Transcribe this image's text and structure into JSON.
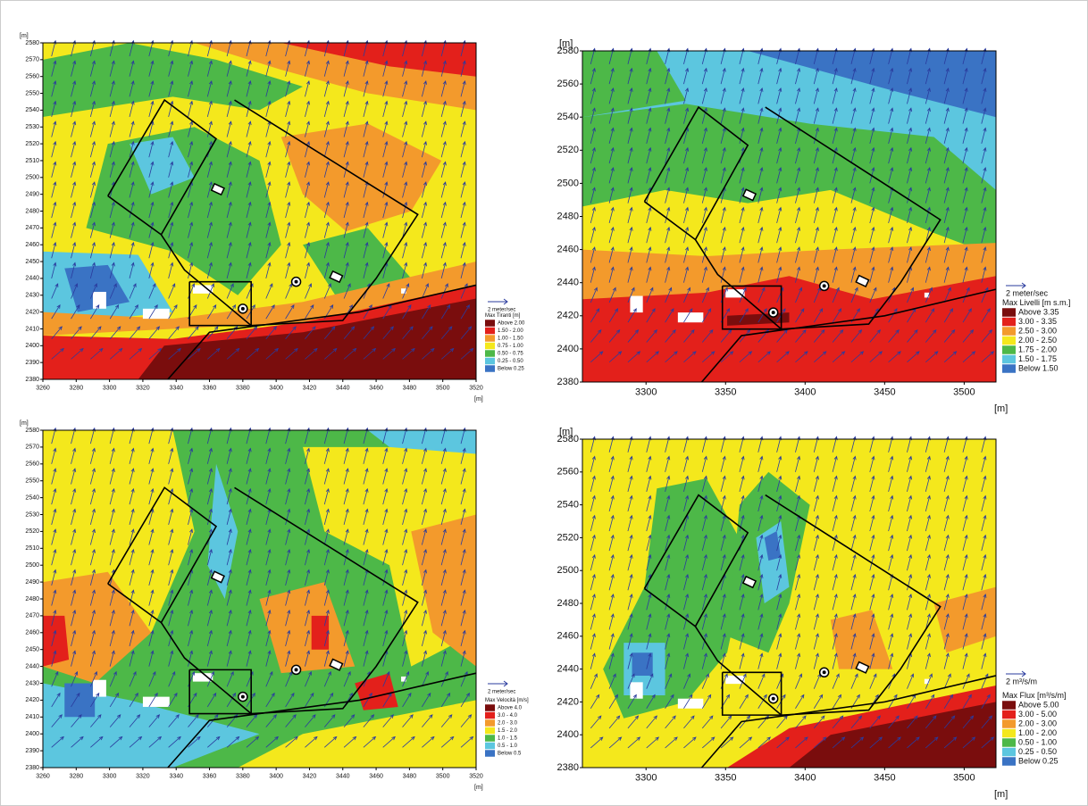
{
  "chart_data": [
    {
      "type": "map",
      "x_label": "[m]",
      "y_label": "[m]",
      "vector_label": "2 meter/sec",
      "xlim": [
        3260,
        3520
      ],
      "ylim": [
        2380,
        2580
      ],
      "xticks": [
        3260,
        3280,
        3300,
        3320,
        3340,
        3360,
        3380,
        3400,
        3420,
        3440,
        3460,
        3480,
        3500,
        3520
      ],
      "yticks": [
        2380,
        2390,
        2400,
        2410,
        2420,
        2430,
        2440,
        2450,
        2460,
        2470,
        2480,
        2490,
        2500,
        2510,
        2520,
        2530,
        2540,
        2550,
        2560,
        2570,
        2580
      ],
      "legend_title": "Max Tiranti [m]",
      "legend": [
        {
          "label": "Above 2.00",
          "color": "#7a0d0d"
        },
        {
          "label": "1.50 - 2.00",
          "color": "#e3201b"
        },
        {
          "label": "1.00 - 1.50",
          "color": "#f39a2c"
        },
        {
          "label": "0.75 - 1.00",
          "color": "#f4e81c"
        },
        {
          "label": "0.50 - 0.75",
          "color": "#4db848"
        },
        {
          "label": "0.25 - 0.50",
          "color": "#5cc6df"
        },
        {
          "label": "Below 0.25",
          "color": "#3a73c4"
        }
      ]
    },
    {
      "type": "map",
      "x_label": "[m]",
      "y_label": "[m]",
      "vector_label": "2 meter/sec",
      "xlim": [
        3260,
        3520
      ],
      "ylim": [
        2380,
        2580
      ],
      "xticks": [
        3300,
        3350,
        3400,
        3450,
        3500
      ],
      "yticks": [
        2380,
        2400,
        2420,
        2440,
        2460,
        2480,
        2500,
        2520,
        2540,
        2560,
        2580
      ],
      "legend_title": "Max Livelli [m s.m.]",
      "legend": [
        {
          "label": "Above 3.35",
          "color": "#7a0d0d"
        },
        {
          "label": "3.00 - 3.35",
          "color": "#e3201b"
        },
        {
          "label": "2.50 - 3.00",
          "color": "#f39a2c"
        },
        {
          "label": "2.00 - 2.50",
          "color": "#f4e81c"
        },
        {
          "label": "1.75 - 2.00",
          "color": "#4db848"
        },
        {
          "label": "1.50 - 1.75",
          "color": "#5cc6df"
        },
        {
          "label": "Below 1.50",
          "color": "#3a73c4"
        }
      ]
    },
    {
      "type": "map",
      "x_label": "[m]",
      "y_label": "[m]",
      "vector_label": "2 meter/sec",
      "xlim": [
        3260,
        3520
      ],
      "ylim": [
        2380,
        2580
      ],
      "xticks": [
        3260,
        3280,
        3300,
        3320,
        3340,
        3360,
        3380,
        3400,
        3420,
        3440,
        3460,
        3480,
        3500,
        3520
      ],
      "yticks": [
        2380,
        2390,
        2400,
        2410,
        2420,
        2430,
        2440,
        2450,
        2460,
        2470,
        2480,
        2490,
        2500,
        2510,
        2520,
        2530,
        2540,
        2550,
        2560,
        2570,
        2580
      ],
      "legend_title": "Max Velocità [m/s]",
      "legend": [
        {
          "label": "Above 4.0",
          "color": "#7a0d0d"
        },
        {
          "label": "3.0 - 4.0",
          "color": "#e3201b"
        },
        {
          "label": "2.0 - 3.0",
          "color": "#f39a2c"
        },
        {
          "label": "1.5 - 2.0",
          "color": "#f4e81c"
        },
        {
          "label": "1.0 - 1.5",
          "color": "#4db848"
        },
        {
          "label": "0.5 - 1.0",
          "color": "#5cc6df"
        },
        {
          "label": "Below 0.5",
          "color": "#3a73c4"
        }
      ]
    },
    {
      "type": "map",
      "x_label": "[m]",
      "y_label": "[m]",
      "vector_label": "2 m³/s/m",
      "xlim": [
        3260,
        3520
      ],
      "ylim": [
        2380,
        2580
      ],
      "xticks": [
        3300,
        3350,
        3400,
        3450,
        3500
      ],
      "yticks": [
        2380,
        2400,
        2420,
        2440,
        2460,
        2480,
        2500,
        2520,
        2540,
        2560,
        2580
      ],
      "legend_title": "Max Flux [m³/s/m]",
      "legend": [
        {
          "label": "Above 5.00",
          "color": "#7a0d0d"
        },
        {
          "label": "3.00 - 5.00",
          "color": "#e3201b"
        },
        {
          "label": "2.00 - 3.00",
          "color": "#f39a2c"
        },
        {
          "label": "1.00 - 2.00",
          "color": "#f4e81c"
        },
        {
          "label": "0.50 - 1.00",
          "color": "#4db848"
        },
        {
          "label": "0.25 - 0.50",
          "color": "#5cc6df"
        },
        {
          "label": "Below 0.25",
          "color": "#3a73c4"
        }
      ]
    }
  ]
}
